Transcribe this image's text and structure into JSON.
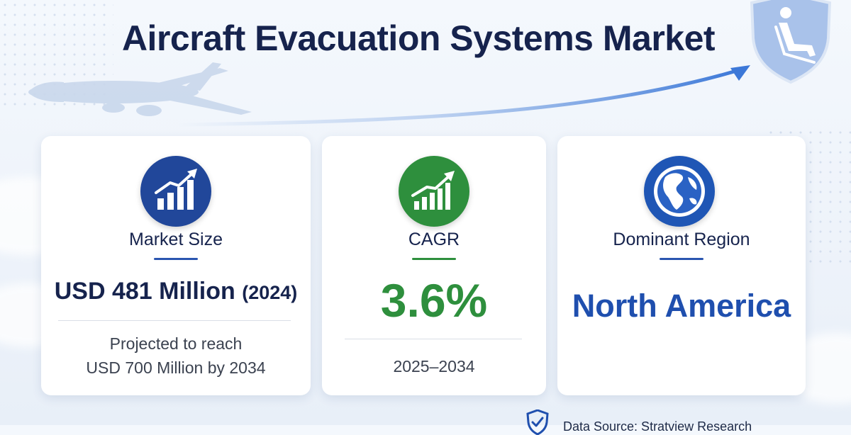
{
  "header": {
    "title": "Aircraft Evacuation Systems Market"
  },
  "cards": {
    "market_size": {
      "icon": "bar-chart-growth-icon",
      "label": "Market Size",
      "value_main": "USD 481 Million",
      "value_year": "(2024)",
      "note_line1": "Projected to reach",
      "note_line2": "USD 700 Million by 2034",
      "accent": "#21479a"
    },
    "cagr": {
      "icon": "bar-chart-growth-icon",
      "label": "CAGR",
      "value": "3.6%",
      "period": "2025–2034",
      "accent": "#2e8f3d"
    },
    "region": {
      "icon": "globe-icon",
      "label": "Dominant Region",
      "value": "North America",
      "accent": "#1f4fae"
    }
  },
  "footer": {
    "source_icon": "shield-check-icon",
    "source_text": "Data Source: Stratview Research"
  },
  "decor": {
    "plane": "airplane-icon",
    "shield": "shield-seat-icon",
    "trend": "trend-arrow-icon"
  }
}
